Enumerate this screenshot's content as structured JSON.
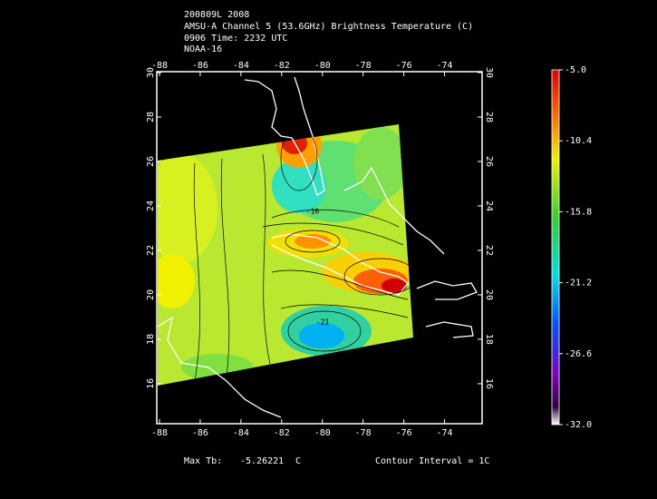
{
  "header": {
    "lines": [
      "200809L 2008",
      "AMSU-A Channel 5 (53.6GHz) Brightness Temperature (C)",
      "0906 Time: 2232 UTC",
      "NOAA-16"
    ]
  },
  "map": {
    "xlim": [
      -88,
      -72.2
    ],
    "ylim": [
      14.2,
      30
    ],
    "xticks": [
      -88,
      -86,
      -84,
      -82,
      -80,
      -78,
      -76,
      -74
    ],
    "yticks": [
      16,
      18,
      20,
      22,
      24,
      26,
      28,
      30
    ],
    "contour_labels": [
      "-16",
      "-21"
    ]
  },
  "colorbar": {
    "lim": [
      -32,
      -5
    ],
    "ticks": [
      {
        "value": -5,
        "label": "-5.0"
      },
      {
        "value": -10.4,
        "label": "-10.4"
      },
      {
        "value": -15.8,
        "label": "-15.8"
      },
      {
        "value": -21.2,
        "label": "-21.2"
      },
      {
        "value": -26.6,
        "label": "-26.6"
      },
      {
        "value": -32,
        "label": "-32.0"
      }
    ]
  },
  "footer": {
    "max_label": "Max Tb:",
    "max_value": -5.26221,
    "max_unit": "C",
    "contour": "Contour Interval = 1C"
  }
}
